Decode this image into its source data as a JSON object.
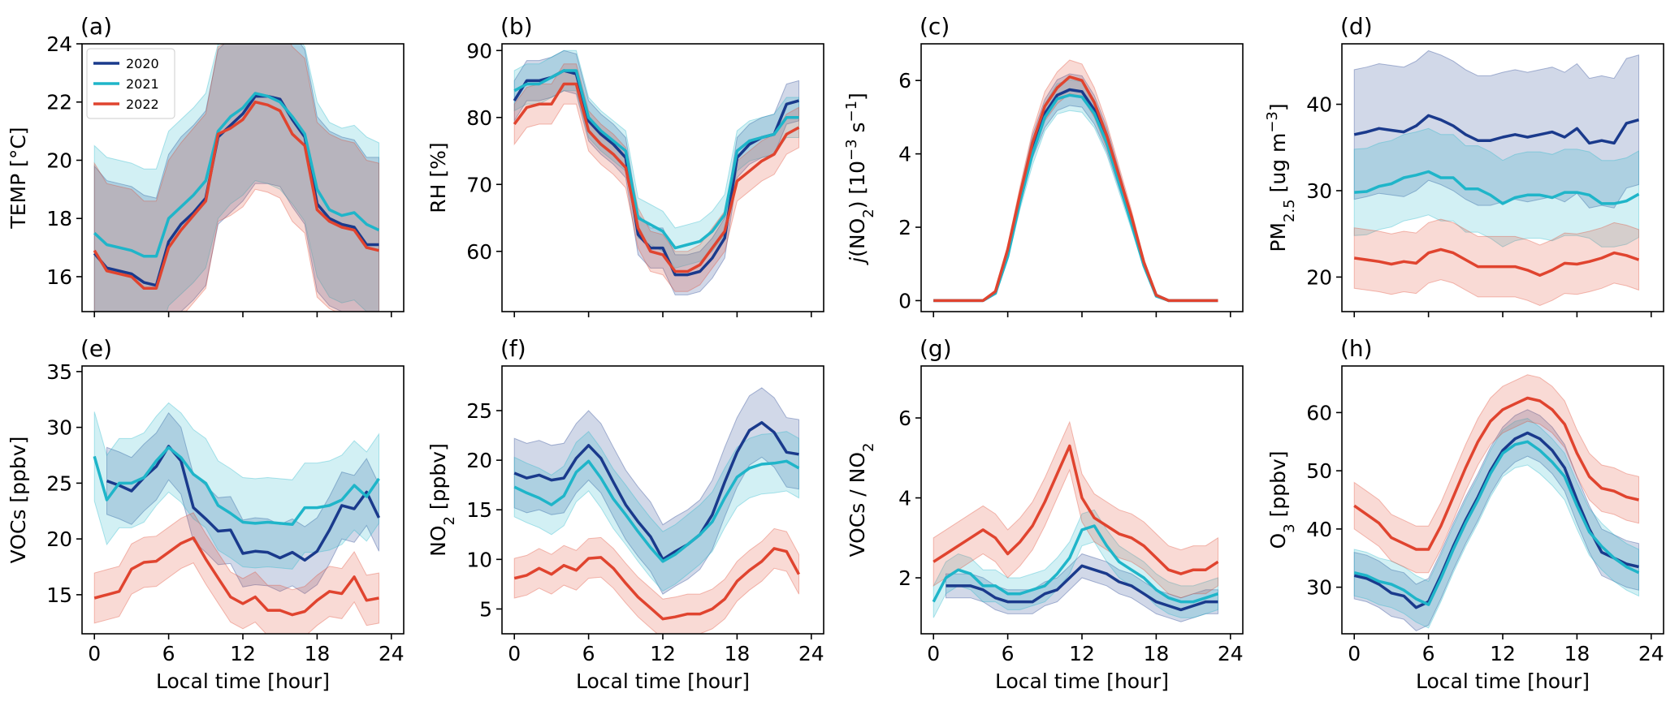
{
  "colors": {
    "2020": "#1a3a8c",
    "2021": "#1fb5c9",
    "2022": "#e0442f"
  },
  "legend": [
    "2020",
    "2021",
    "2022"
  ],
  "xlabel": "Local time [hour]",
  "chart_data": [
    {
      "id": "a",
      "type": "line",
      "panel_label": "(a)",
      "ylabel": "TEMP [°C]",
      "ylim": [
        14.8,
        24.0
      ],
      "yticks": [
        16,
        18,
        20,
        22,
        24
      ],
      "ytick_labels": [
        "16",
        "18",
        "20",
        "22",
        "24"
      ],
      "xticks": [
        0,
        6,
        12,
        18,
        24
      ],
      "xtick_labels": [],
      "xlim": [
        -1,
        25
      ],
      "x": [
        0,
        1,
        2,
        3,
        4,
        5,
        6,
        7,
        8,
        9,
        10,
        11,
        12,
        13,
        14,
        15,
        16,
        17,
        18,
        19,
        20,
        21,
        22,
        23
      ],
      "series": [
        {
          "name": "2020",
          "values": [
            16.8,
            16.3,
            16.2,
            16.1,
            15.8,
            15.7,
            17.2,
            17.8,
            18.2,
            18.7,
            20.8,
            21.2,
            21.6,
            22.2,
            22.2,
            22.1,
            21.4,
            20.8,
            18.5,
            18.0,
            17.8,
            17.7,
            17.1,
            17.1
          ],
          "band": 6.0
        },
        {
          "name": "2021",
          "values": [
            17.5,
            17.1,
            17.0,
            16.9,
            16.7,
            16.7,
            18.0,
            18.4,
            18.8,
            19.3,
            21.0,
            21.5,
            21.8,
            22.3,
            22.2,
            22.0,
            21.5,
            20.9,
            19.0,
            18.3,
            18.1,
            18.2,
            17.8,
            17.6
          ],
          "band": 6.0
        },
        {
          "name": "2022",
          "values": [
            16.9,
            16.2,
            16.1,
            16.0,
            15.6,
            15.6,
            17.0,
            17.6,
            18.1,
            18.6,
            20.9,
            21.1,
            21.4,
            22.0,
            21.9,
            21.7,
            20.9,
            20.5,
            18.3,
            17.9,
            17.7,
            17.6,
            17.0,
            16.9
          ],
          "band": 6.0
        }
      ]
    },
    {
      "id": "b",
      "type": "line",
      "panel_label": "(b)",
      "ylabel": "RH [%]",
      "ylim": [
        51,
        91
      ],
      "yticks": [
        60,
        70,
        80,
        90
      ],
      "ytick_labels": [
        "60",
        "70",
        "80",
        "90"
      ],
      "xticks": [
        0,
        6,
        12,
        18,
        24
      ],
      "xtick_labels": [],
      "xlim": [
        -1,
        25
      ],
      "x": [
        0,
        1,
        2,
        3,
        4,
        5,
        6,
        7,
        8,
        9,
        10,
        11,
        12,
        13,
        14,
        15,
        16,
        17,
        18,
        19,
        20,
        21,
        22,
        23
      ],
      "series": [
        {
          "name": "2020",
          "values": [
            82.5,
            85.5,
            85.5,
            86.0,
            87.0,
            86.5,
            79.5,
            77.5,
            76.0,
            74.0,
            62.5,
            60.5,
            60.5,
            56.5,
            56.5,
            57.0,
            59.0,
            62.0,
            74.0,
            76.0,
            77.0,
            77.5,
            82.0,
            82.5
          ],
          "band": 6.0
        },
        {
          "name": "2021",
          "values": [
            84.0,
            85.0,
            85.0,
            86.0,
            87.0,
            87.0,
            80.0,
            78.0,
            76.5,
            75.0,
            65.0,
            64.0,
            63.0,
            60.5,
            61.0,
            61.5,
            63.0,
            65.5,
            75.0,
            76.5,
            77.0,
            77.5,
            80.0,
            80.0
          ],
          "band": 6.0
        },
        {
          "name": "2022",
          "values": [
            79.0,
            81.5,
            82.0,
            82.0,
            85.0,
            85.0,
            78.0,
            76.0,
            74.5,
            72.5,
            63.5,
            60.0,
            59.5,
            57.0,
            57.0,
            58.0,
            60.5,
            63.0,
            70.5,
            72.0,
            73.5,
            74.5,
            77.5,
            78.5
          ],
          "band": 6.0
        }
      ]
    },
    {
      "id": "c",
      "type": "line",
      "panel_label": "(c)",
      "ylabel": "j(NO2) [10−3 s−1]",
      "ylim": [
        -0.3,
        7.0
      ],
      "yticks": [
        0,
        2,
        4,
        6
      ],
      "ytick_labels": [
        "0",
        "2",
        "4",
        "6"
      ],
      "xticks": [
        0,
        6,
        12,
        18,
        24
      ],
      "xtick_labels": [],
      "xlim": [
        -1,
        25
      ],
      "x": [
        0,
        1,
        2,
        3,
        4,
        5,
        6,
        7,
        8,
        9,
        10,
        11,
        12,
        13,
        14,
        15,
        16,
        17,
        18,
        19,
        20,
        21,
        22,
        23
      ],
      "series": [
        {
          "name": "2020",
          "values": [
            0,
            0,
            0,
            0,
            0,
            0.2,
            1.3,
            2.8,
            4.2,
            5.1,
            5.6,
            5.75,
            5.7,
            5.2,
            4.4,
            3.3,
            2.2,
            1.0,
            0.15,
            0,
            0,
            0,
            0,
            0
          ],
          "band": 0.9
        },
        {
          "name": "2021",
          "values": [
            0,
            0,
            0,
            0,
            0,
            0.2,
            1.2,
            2.7,
            4.0,
            5.0,
            5.5,
            5.6,
            5.55,
            5.1,
            4.3,
            3.2,
            2.1,
            0.95,
            0.12,
            0,
            0,
            0,
            0,
            0
          ],
          "band": 0.9
        },
        {
          "name": "2022",
          "values": [
            0,
            0,
            0,
            0,
            0,
            0.25,
            1.4,
            2.9,
            4.3,
            5.3,
            5.8,
            6.1,
            6.0,
            5.4,
            4.5,
            3.4,
            2.3,
            1.05,
            0.15,
            0,
            0,
            0,
            0,
            0
          ],
          "band": 0.9
        }
      ]
    },
    {
      "id": "d",
      "type": "line",
      "panel_label": "(d)",
      "ylabel": "PM2.5 [ug m−3]",
      "ylim": [
        16,
        47
      ],
      "yticks": [
        20,
        30,
        40
      ],
      "ytick_labels": [
        "20",
        "30",
        "40"
      ],
      "xticks": [
        0,
        6,
        12,
        18,
        24
      ],
      "xtick_labels": [],
      "xlim": [
        -1,
        25
      ],
      "x": [
        0,
        1,
        2,
        3,
        4,
        5,
        6,
        7,
        8,
        9,
        10,
        11,
        12,
        13,
        14,
        15,
        16,
        17,
        18,
        19,
        20,
        21,
        22,
        23
      ],
      "series": [
        {
          "name": "2020",
          "values": [
            36.5,
            36.8,
            37.2,
            37.0,
            36.8,
            37.5,
            38.7,
            38.2,
            37.5,
            36.5,
            35.8,
            35.8,
            36.2,
            36.5,
            36.2,
            36.5,
            36.8,
            36.2,
            37.2,
            35.5,
            35.8,
            35.5,
            37.8,
            38.2
          ],
          "band": 15.0
        },
        {
          "name": "2021",
          "values": [
            29.8,
            29.9,
            30.5,
            30.8,
            31.5,
            31.8,
            32.2,
            31.5,
            31.5,
            30.2,
            30.2,
            29.5,
            28.5,
            29.2,
            29.5,
            29.5,
            29.2,
            29.8,
            29.8,
            29.5,
            28.5,
            28.5,
            28.8,
            29.6
          ],
          "band": 10.0
        },
        {
          "name": "2022",
          "values": [
            22.2,
            22.0,
            21.8,
            21.5,
            21.8,
            21.6,
            22.8,
            23.2,
            22.8,
            22.0,
            21.2,
            21.2,
            21.2,
            21.2,
            20.8,
            20.2,
            20.8,
            21.6,
            21.5,
            21.8,
            22.2,
            22.8,
            22.5,
            22.0
          ],
          "band": 7.0
        }
      ]
    },
    {
      "id": "e",
      "type": "line",
      "panel_label": "(e)",
      "ylabel": "VOCs [ppbv]",
      "ylim": [
        11.5,
        35.5
      ],
      "yticks": [
        15,
        20,
        25,
        30,
        35
      ],
      "ytick_labels": [
        "15",
        "20",
        "25",
        "30",
        "35"
      ],
      "xticks": [
        0,
        6,
        12,
        18,
        24
      ],
      "xtick_labels": [
        "0",
        "6",
        "12",
        "18",
        "24"
      ],
      "xlim": [
        -1,
        25
      ],
      "x": [
        0,
        1,
        2,
        3,
        4,
        5,
        6,
        7,
        8,
        9,
        10,
        11,
        12,
        13,
        14,
        15,
        16,
        17,
        18,
        19,
        20,
        21,
        22,
        23
      ],
      "series": [
        {
          "name": "2020",
          "values": [
            null,
            25.2,
            24.8,
            24.3,
            25.5,
            26.5,
            28.3,
            27.0,
            22.8,
            21.8,
            20.7,
            20.8,
            18.7,
            18.9,
            18.8,
            18.3,
            18.8,
            18.1,
            18.9,
            20.8,
            23.0,
            22.7,
            24.2,
            21.9
          ],
          "band": 6.0
        },
        {
          "name": "2021",
          "values": [
            27.4,
            23.5,
            25.0,
            25.0,
            25.5,
            27.0,
            28.2,
            27.3,
            25.8,
            25.0,
            23.0,
            22.3,
            21.5,
            21.4,
            21.5,
            21.4,
            21.3,
            22.8,
            22.8,
            23.0,
            23.5,
            24.8,
            23.8,
            25.4
          ],
          "band": 8.0
        },
        {
          "name": "2022",
          "values": [
            14.7,
            15.0,
            15.3,
            17.3,
            17.9,
            18.0,
            18.8,
            19.6,
            20.1,
            18.2,
            16.5,
            14.8,
            14.2,
            14.8,
            13.6,
            13.6,
            13.2,
            13.5,
            14.5,
            15.3,
            15.1,
            16.6,
            14.5,
            14.7
          ],
          "band": 4.5
        }
      ]
    },
    {
      "id": "f",
      "type": "line",
      "panel_label": "(f)",
      "ylabel": "NO2 [ppbv]",
      "ylim": [
        2.5,
        29.5
      ],
      "yticks": [
        5,
        10,
        15,
        20,
        25
      ],
      "ytick_labels": [
        "5",
        "10",
        "15",
        "20",
        "25"
      ],
      "xticks": [
        0,
        6,
        12,
        18,
        24
      ],
      "xtick_labels": [
        "0",
        "6",
        "12",
        "18",
        "24"
      ],
      "xlim": [
        -1,
        25
      ],
      "x": [
        0,
        1,
        2,
        3,
        4,
        5,
        6,
        7,
        8,
        9,
        10,
        11,
        12,
        13,
        14,
        15,
        16,
        17,
        18,
        19,
        20,
        21,
        22,
        23
      ],
      "series": [
        {
          "name": "2020",
          "values": [
            18.7,
            18.2,
            18.5,
            18.0,
            18.2,
            20.2,
            21.5,
            20.2,
            17.8,
            15.5,
            13.8,
            12.3,
            10.0,
            10.8,
            11.5,
            12.5,
            14.5,
            17.8,
            20.8,
            23.0,
            23.8,
            22.8,
            20.8,
            20.6
          ],
          "band": 7.0
        },
        {
          "name": "2021",
          "values": [
            17.3,
            16.7,
            16.2,
            15.5,
            16.4,
            18.8,
            19.9,
            18.2,
            16.1,
            14.5,
            12.8,
            11.2,
            9.8,
            10.5,
            11.5,
            12.5,
            13.8,
            16.2,
            18.3,
            19.2,
            19.6,
            19.7,
            19.9,
            19.2
          ],
          "band": 6.0
        },
        {
          "name": "2022",
          "values": [
            8.1,
            8.4,
            9.1,
            8.5,
            9.4,
            8.9,
            10.1,
            10.2,
            9.1,
            7.6,
            6.2,
            5.1,
            4.0,
            4.2,
            4.5,
            4.5,
            5.0,
            6.0,
            7.8,
            8.9,
            9.8,
            11.1,
            10.8,
            8.5
          ],
          "band": 4.0
        }
      ]
    },
    {
      "id": "g",
      "type": "line",
      "panel_label": "(g)",
      "ylabel": "VOCs / NO2",
      "ylim": [
        0.6,
        7.3
      ],
      "yticks": [
        2,
        4,
        6
      ],
      "ytick_labels": [
        "2",
        "4",
        "6"
      ],
      "xticks": [
        0,
        6,
        12,
        18,
        24
      ],
      "xtick_labels": [
        "0",
        "6",
        "12",
        "18",
        "24"
      ],
      "xlim": [
        -1,
        25
      ],
      "x": [
        0,
        1,
        2,
        3,
        4,
        5,
        6,
        7,
        8,
        9,
        10,
        11,
        12,
        13,
        14,
        15,
        16,
        17,
        18,
        19,
        20,
        21,
        22,
        23
      ],
      "series": [
        {
          "name": "2020",
          "values": [
            null,
            1.8,
            1.8,
            1.8,
            1.7,
            1.5,
            1.4,
            1.4,
            1.4,
            1.6,
            1.7,
            2.0,
            2.3,
            2.2,
            2.1,
            1.9,
            1.8,
            1.6,
            1.4,
            1.3,
            1.2,
            1.3,
            1.4,
            1.4
          ],
          "band": 0.6
        },
        {
          "name": "2021",
          "values": [
            1.4,
            2.0,
            2.2,
            2.1,
            1.8,
            1.8,
            1.6,
            1.6,
            1.7,
            1.8,
            2.1,
            2.5,
            3.2,
            3.3,
            2.8,
            2.4,
            2.2,
            2.0,
            1.7,
            1.5,
            1.4,
            1.4,
            1.5,
            1.6
          ],
          "band": 0.8
        },
        {
          "name": "2022",
          "values": [
            2.4,
            2.6,
            2.8,
            3.0,
            3.2,
            3.0,
            2.6,
            2.9,
            3.3,
            3.9,
            4.6,
            5.3,
            4.0,
            3.5,
            3.3,
            3.1,
            3.0,
            2.8,
            2.5,
            2.2,
            2.1,
            2.2,
            2.2,
            2.4
          ],
          "band": 1.2
        }
      ]
    },
    {
      "id": "h",
      "type": "line",
      "panel_label": "(h)",
      "ylabel": "O3 [ppbv]",
      "ylim": [
        22,
        68
      ],
      "yticks": [
        30,
        40,
        50,
        60
      ],
      "ytick_labels": [
        "30",
        "40",
        "50",
        "60"
      ],
      "xticks": [
        0,
        6,
        12,
        18,
        24
      ],
      "xtick_labels": [
        "0",
        "6",
        "12",
        "18",
        "24"
      ],
      "xlim": [
        -1,
        25
      ],
      "x": [
        0,
        1,
        2,
        3,
        4,
        5,
        6,
        7,
        8,
        9,
        10,
        11,
        12,
        13,
        14,
        15,
        16,
        17,
        18,
        19,
        20,
        21,
        22,
        23
      ],
      "series": [
        {
          "name": "2020",
          "values": [
            32.0,
            31.5,
            30.5,
            29.0,
            28.5,
            26.5,
            27.5,
            32.0,
            37.0,
            41.5,
            45.5,
            50.0,
            53.5,
            55.5,
            56.5,
            55.5,
            53.5,
            50.5,
            45.0,
            40.0,
            36.0,
            35.0,
            34.0,
            33.5
          ],
          "band": 8.0
        },
        {
          "name": "2021",
          "values": [
            32.5,
            32.0,
            31.0,
            30.5,
            29.5,
            28.0,
            27.0,
            31.5,
            36.5,
            41.0,
            45.0,
            49.5,
            53.0,
            54.5,
            55.0,
            53.5,
            51.5,
            49.0,
            44.0,
            39.5,
            37.0,
            35.0,
            33.5,
            32.5
          ],
          "band": 8.0
        },
        {
          "name": "2022",
          "values": [
            44.0,
            42.5,
            41.0,
            38.5,
            37.5,
            36.5,
            36.5,
            40.5,
            45.5,
            50.5,
            55.0,
            58.5,
            60.5,
            61.5,
            62.5,
            62.0,
            60.5,
            58.0,
            53.0,
            49.0,
            47.0,
            46.5,
            45.5,
            45.0
          ],
          "band": 8.0
        }
      ]
    }
  ]
}
